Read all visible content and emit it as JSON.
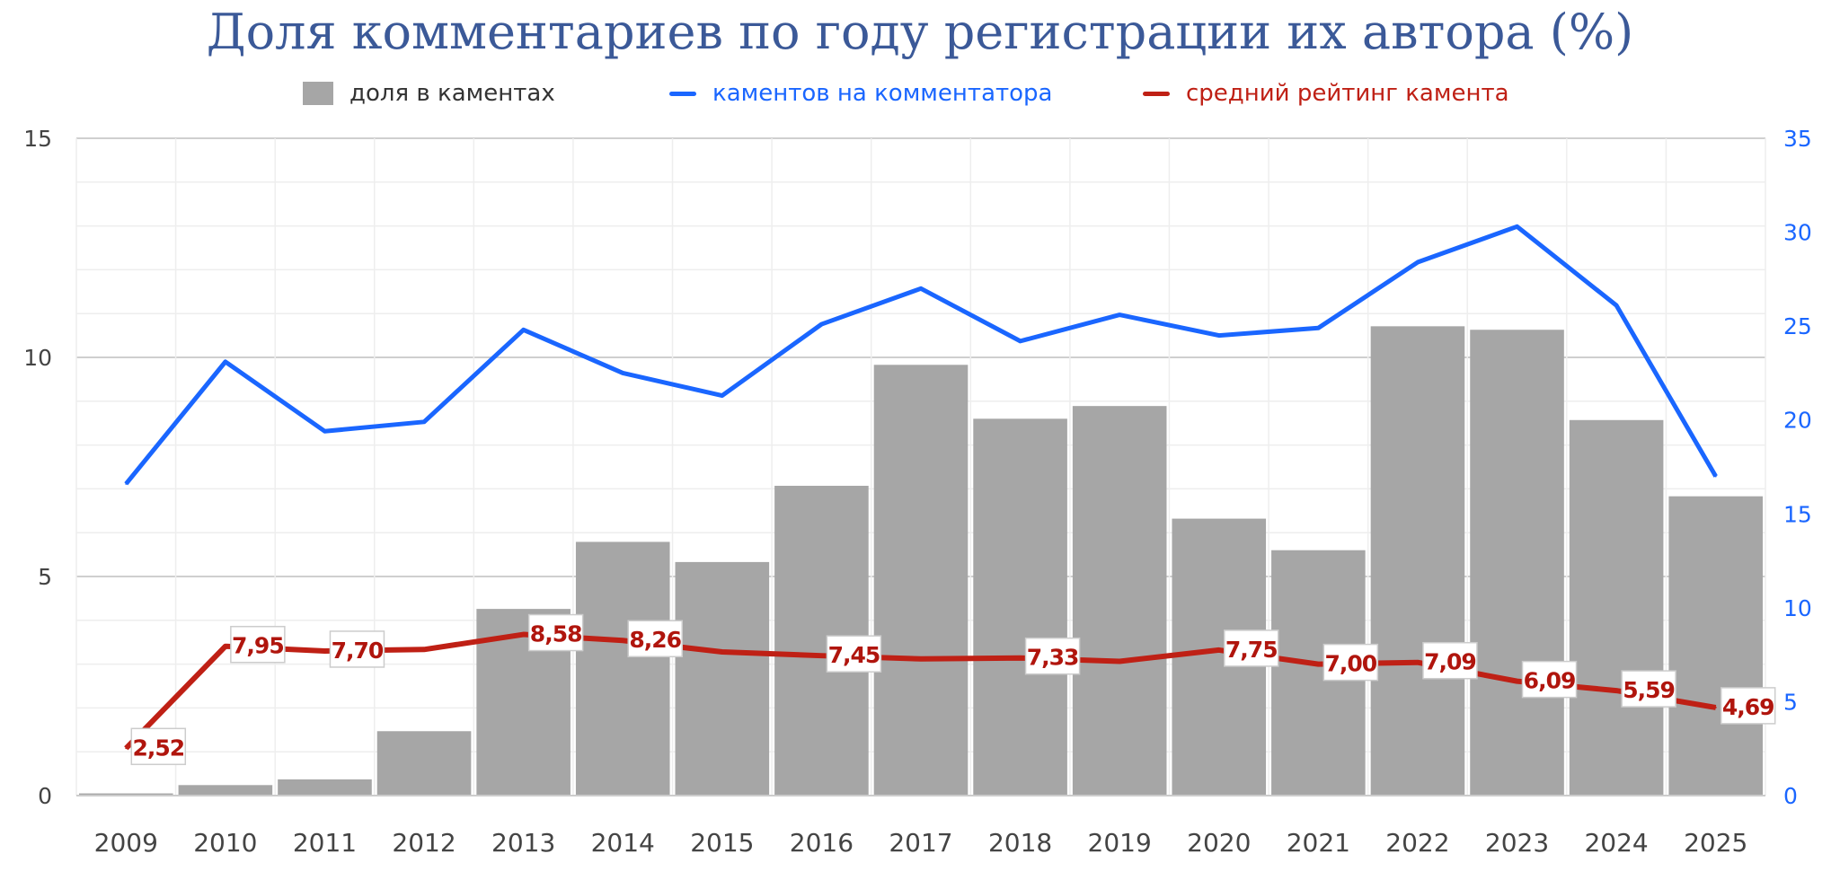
{
  "chart_data": {
    "type": "bar+line",
    "title": "Доля комментариев по году регистрации их автора (%)",
    "categories": [
      "2009",
      "2010",
      "2011",
      "2012",
      "2013",
      "2014",
      "2015",
      "2016",
      "2017",
      "2018",
      "2019",
      "2020",
      "2021",
      "2022",
      "2023",
      "2024",
      "2025"
    ],
    "left_axis": {
      "range": [
        0,
        15
      ],
      "ticks": [
        "0",
        "5",
        "10",
        "15"
      ],
      "tick_values": [
        0,
        5,
        10,
        15
      ]
    },
    "right_axis": {
      "range": [
        0,
        35
      ],
      "ticks": [
        "0",
        "5",
        "10",
        "15",
        "20",
        "25",
        "30",
        "35"
      ],
      "tick_values": [
        0,
        5,
        10,
        15,
        20,
        25,
        30,
        35
      ]
    },
    "grid": true,
    "legend_placement": "top",
    "series": [
      {
        "name": "доля в каментах",
        "kind": "bar",
        "axis": "left",
        "color": "#a6a6a6",
        "values": [
          0.05,
          0.24,
          0.37,
          1.47,
          4.26,
          5.79,
          5.33,
          7.07,
          9.83,
          8.6,
          8.89,
          6.32,
          5.6,
          10.71,
          10.63,
          8.57,
          6.83
        ]
      },
      {
        "name": "каментов на комментатора",
        "kind": "line",
        "axis": "right",
        "color": "#1a66ff",
        "values": [
          16.6,
          23.1,
          19.4,
          19.9,
          24.8,
          22.5,
          21.3,
          25.1,
          27.0,
          24.2,
          25.6,
          24.5,
          24.9,
          28.4,
          30.3,
          26.1,
          17.0
        ]
      },
      {
        "name": "средний рейтинг камента",
        "kind": "line",
        "axis": "right",
        "color": "#bf2015",
        "values": [
          2.52,
          7.95,
          7.7,
          7.78,
          8.58,
          8.26,
          7.65,
          7.45,
          7.28,
          7.33,
          7.15,
          7.75,
          7.0,
          7.09,
          6.09,
          5.59,
          4.69
        ],
        "labels": [
          "2,52",
          "7,95",
          "7,70",
          null,
          "8,58",
          "8,26",
          null,
          "7,45",
          null,
          "7,33",
          null,
          "7,75",
          "7,00",
          "7,09",
          "6,09",
          "5,59",
          "4,69"
        ]
      }
    ]
  }
}
